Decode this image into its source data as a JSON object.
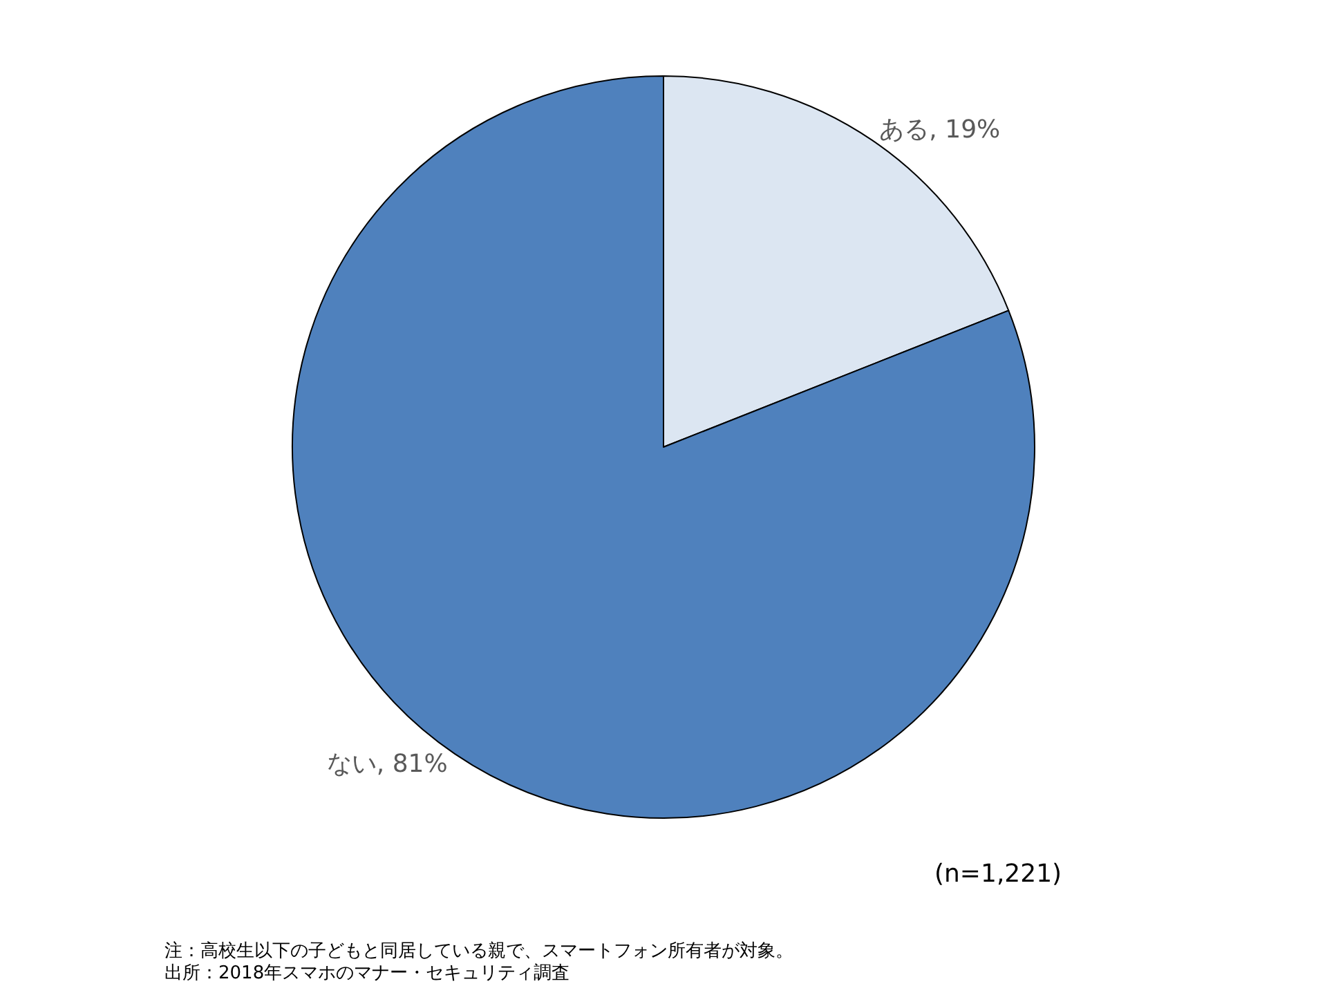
{
  "chart_data": {
    "type": "pie",
    "categories": [
      "ある",
      "ない"
    ],
    "values": [
      19,
      81
    ],
    "colors": [
      "#dce6f2",
      "#4f81bd"
    ],
    "value_labels": [
      "19%",
      "81%"
    ],
    "legend": false,
    "annotations": [
      "(n=1,221)",
      "注：高校生以下の子どもと同居している親で、スマートフォン所有者が対象。",
      "出所：2018年スマホのマナー・セキュリティ調査"
    ]
  }
}
